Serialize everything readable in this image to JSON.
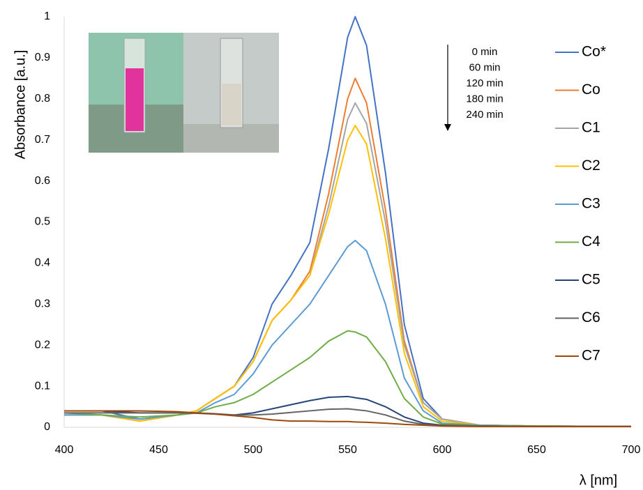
{
  "chart_data": {
    "type": "line",
    "x_label": "λ [nm]",
    "y_label": "Absorbance [a.u.]",
    "annotations": [
      "0 min",
      "60 min",
      "120 min",
      "180 min",
      "240 min"
    ],
    "legend": "right",
    "xlim": [
      400,
      700
    ],
    "xticks": [
      400,
      450,
      500,
      550,
      600,
      650,
      700
    ],
    "ylim": [
      0,
      1
    ],
    "yticks": [
      0,
      0.1,
      0.2,
      0.3,
      0.4,
      0.5,
      0.6,
      0.7,
      0.8,
      0.9,
      1
    ],
    "x": [
      400,
      420,
      440,
      460,
      470,
      480,
      490,
      500,
      510,
      520,
      530,
      540,
      550,
      554,
      560,
      570,
      580,
      590,
      600,
      620,
      650,
      700
    ],
    "series": [
      {
        "name": "Co*",
        "color": "#4472c4",
        "values": [
          0.04,
          0.04,
          0.02,
          0.03,
          0.04,
          0.07,
          0.1,
          0.17,
          0.3,
          0.37,
          0.45,
          0.68,
          0.95,
          1.0,
          0.93,
          0.62,
          0.25,
          0.07,
          0.02,
          0.005,
          0.003,
          0.002
        ]
      },
      {
        "name": "Co",
        "color": "#ed7d31",
        "values": [
          0.03,
          0.03,
          0.015,
          0.03,
          0.04,
          0.07,
          0.1,
          0.16,
          0.26,
          0.31,
          0.38,
          0.57,
          0.8,
          0.85,
          0.79,
          0.53,
          0.21,
          0.06,
          0.02,
          0.005,
          0.003,
          0.002
        ]
      },
      {
        "name": "C1",
        "color": "#a5a5a5",
        "values": [
          0.03,
          0.03,
          0.015,
          0.03,
          0.04,
          0.07,
          0.1,
          0.16,
          0.26,
          0.31,
          0.37,
          0.54,
          0.75,
          0.79,
          0.74,
          0.5,
          0.2,
          0.06,
          0.02,
          0.005,
          0.003,
          0.002
        ]
      },
      {
        "name": "C2",
        "color": "#ffc000",
        "values": [
          0.03,
          0.03,
          0.015,
          0.03,
          0.04,
          0.07,
          0.1,
          0.16,
          0.26,
          0.31,
          0.37,
          0.52,
          0.7,
          0.735,
          0.69,
          0.46,
          0.18,
          0.05,
          0.015,
          0.005,
          0.003,
          0.002
        ]
      },
      {
        "name": "C3",
        "color": "#5b9bd5",
        "values": [
          0.03,
          0.03,
          0.02,
          0.03,
          0.035,
          0.06,
          0.08,
          0.13,
          0.2,
          0.25,
          0.3,
          0.37,
          0.44,
          0.455,
          0.43,
          0.3,
          0.12,
          0.04,
          0.01,
          0.005,
          0.003,
          0.002
        ]
      },
      {
        "name": "C4",
        "color": "#70ad47",
        "values": [
          0.035,
          0.03,
          0.025,
          0.03,
          0.035,
          0.05,
          0.06,
          0.08,
          0.11,
          0.14,
          0.17,
          0.21,
          0.235,
          0.232,
          0.22,
          0.16,
          0.07,
          0.025,
          0.008,
          0.004,
          0.003,
          0.002
        ]
      },
      {
        "name": "C5",
        "color": "#264478",
        "values": [
          0.04,
          0.04,
          0.035,
          0.035,
          0.035,
          0.033,
          0.03,
          0.035,
          0.045,
          0.055,
          0.065,
          0.073,
          0.075,
          0.072,
          0.068,
          0.05,
          0.025,
          0.01,
          0.005,
          0.003,
          0.002,
          0.002
        ]
      },
      {
        "name": "C6",
        "color": "#636363",
        "values": [
          0.035,
          0.035,
          0.035,
          0.035,
          0.034,
          0.032,
          0.03,
          0.03,
          0.032,
          0.036,
          0.04,
          0.044,
          0.045,
          0.043,
          0.04,
          0.03,
          0.015,
          0.007,
          0.004,
          0.003,
          0.002,
          0.002
        ]
      },
      {
        "name": "C7",
        "color": "#9e480e",
        "values": [
          0.04,
          0.04,
          0.04,
          0.038,
          0.035,
          0.032,
          0.028,
          0.024,
          0.018,
          0.015,
          0.015,
          0.014,
          0.014,
          0.013,
          0.012,
          0.01,
          0.007,
          0.005,
          0.003,
          0.002,
          0.002,
          0.002
        ]
      }
    ]
  }
}
